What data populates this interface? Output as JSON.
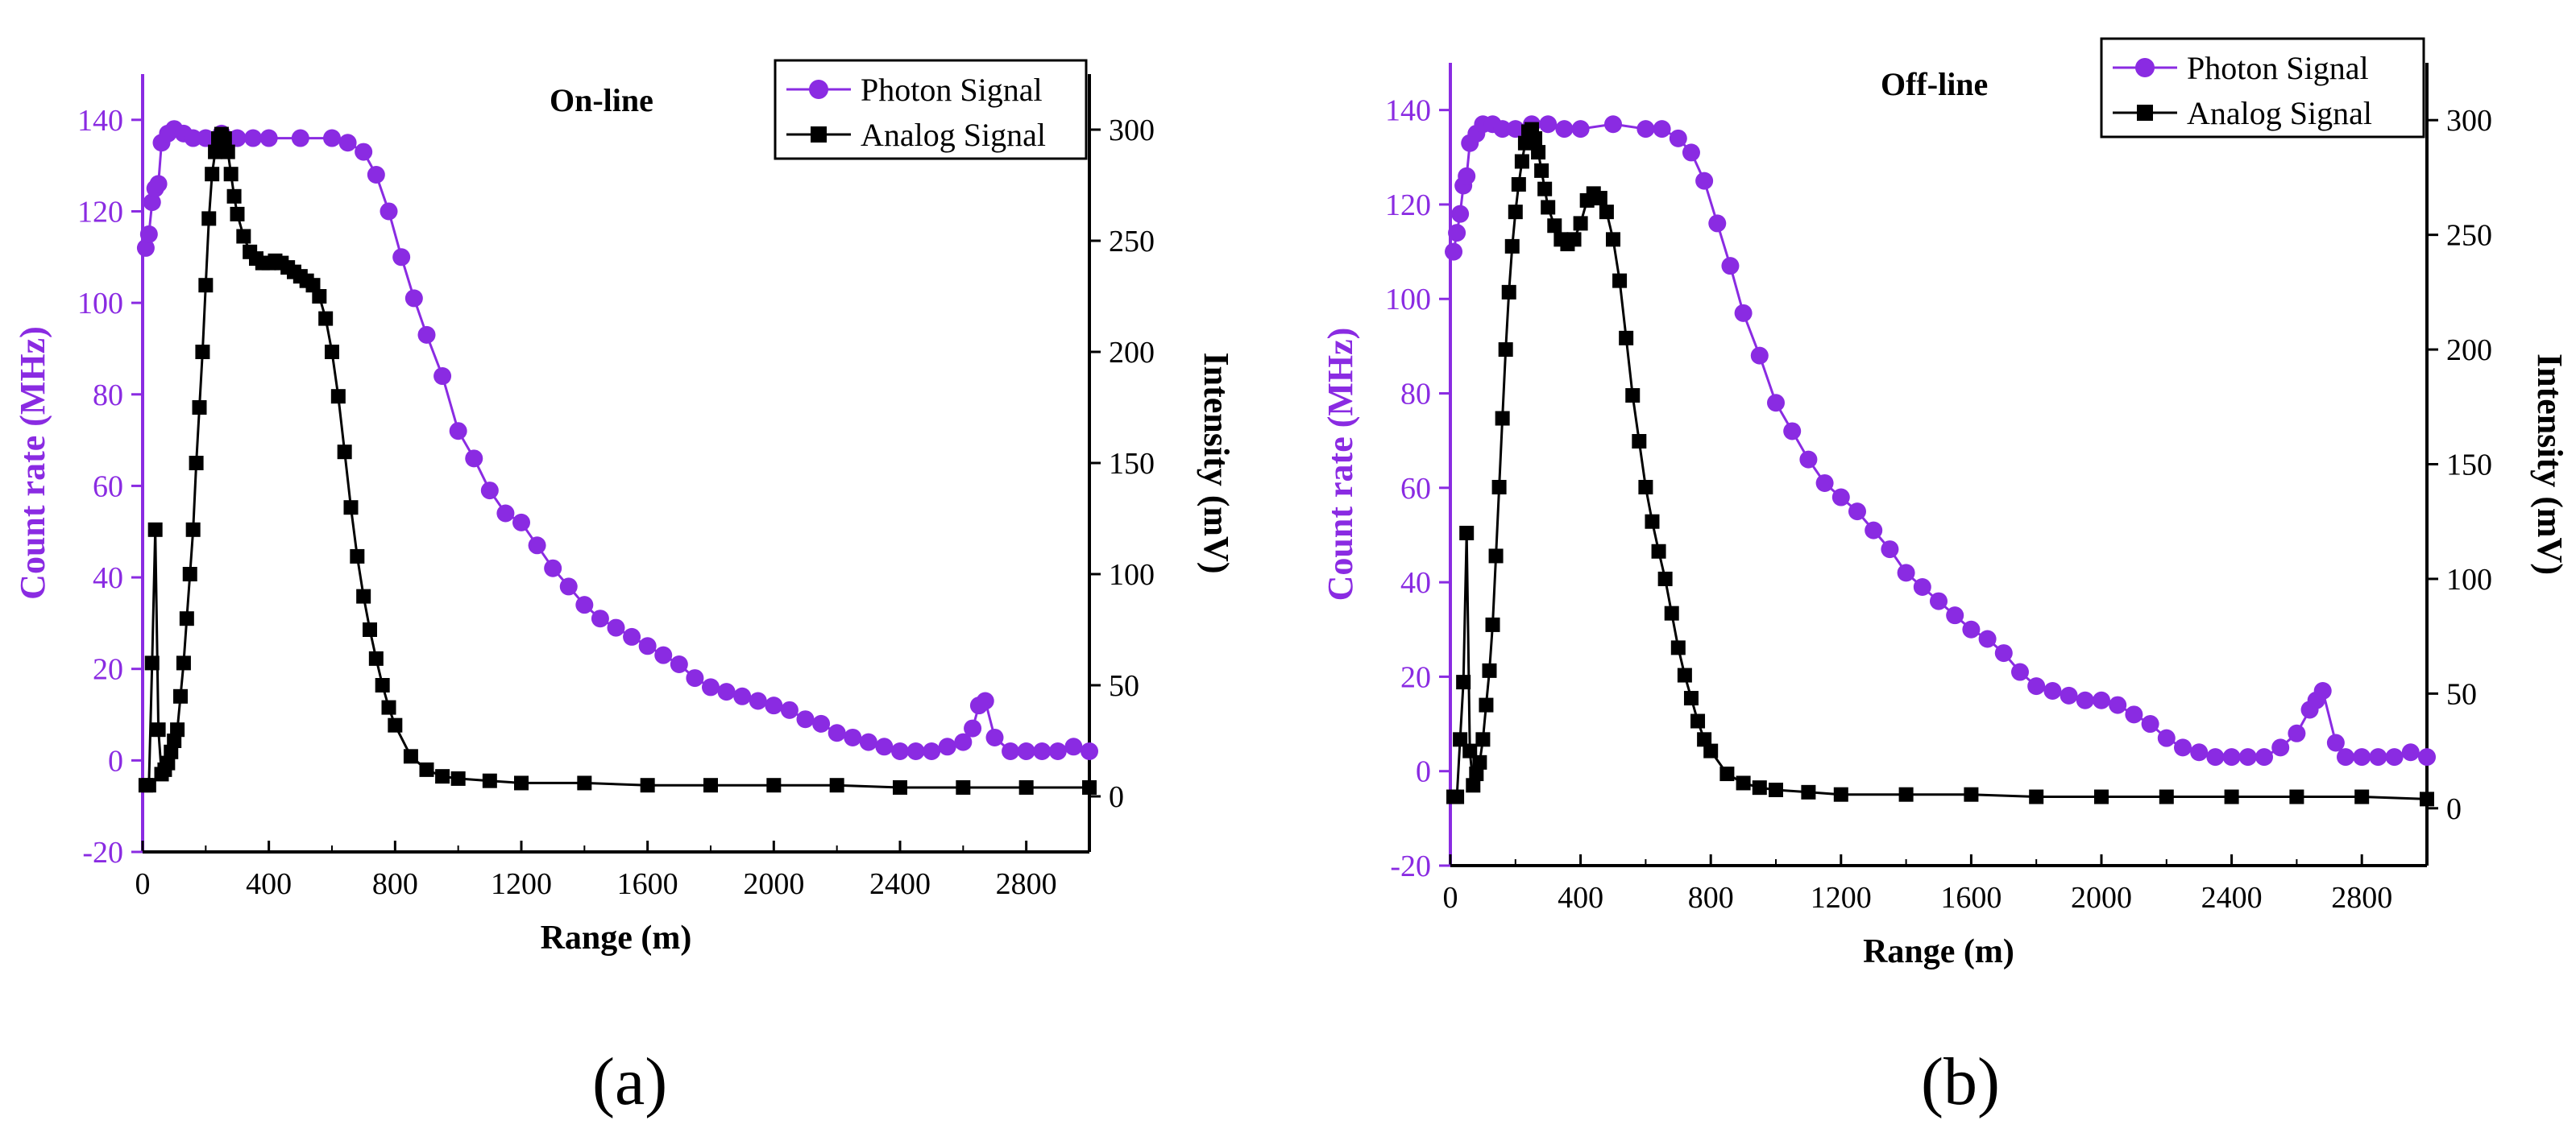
{
  "colors": {
    "photon": "#8A2BE2",
    "analog": "#000000",
    "axis_left": "#8A2BE2",
    "axis_right": "#000000"
  },
  "panels": [
    {
      "label": "(a)",
      "chart_data": {
        "type": "line",
        "title": "On-line",
        "xlabel": "Range (m)",
        "ylabel_left": "Count rate (MHz)",
        "ylabel_right": "Intensity (mV)",
        "xlim": [
          0,
          3000
        ],
        "ylim_left": [
          -20,
          150
        ],
        "ylim_right": [
          -25,
          325
        ],
        "xticks": [
          0,
          400,
          800,
          1200,
          1600,
          2000,
          2400,
          2800
        ],
        "yticks_left": [
          -20,
          0,
          20,
          40,
          60,
          80,
          100,
          120,
          140
        ],
        "yticks_right": [
          0,
          50,
          100,
          150,
          200,
          250,
          300
        ],
        "legend": [
          "Photon Signal",
          "Analog Signal"
        ],
        "legend_position": "top-right",
        "series": [
          {
            "name": "Photon Signal",
            "axis": "left",
            "marker": "circle",
            "x": [
              10,
              20,
              30,
              40,
              50,
              60,
              80,
              100,
              130,
              160,
              200,
              250,
              300,
              350,
              400,
              500,
              600,
              650,
              700,
              740,
              780,
              820,
              860,
              900,
              950,
              1000,
              1050,
              1100,
              1150,
              1200,
              1250,
              1300,
              1350,
              1400,
              1450,
              1500,
              1550,
              1600,
              1650,
              1700,
              1750,
              1800,
              1850,
              1900,
              1950,
              2000,
              2050,
              2100,
              2150,
              2200,
              2250,
              2300,
              2350,
              2400,
              2450,
              2500,
              2550,
              2600,
              2630,
              2650,
              2670,
              2700,
              2750,
              2800,
              2850,
              2900,
              2950,
              3000
            ],
            "values": [
              112,
              115,
              122,
              125,
              126,
              135,
              137,
              138,
              137,
              136,
              136,
              137,
              136,
              136,
              136,
              136,
              136,
              135,
              133,
              128,
              120,
              110,
              101,
              93,
              84,
              72,
              66,
              59,
              54,
              52,
              47,
              42,
              38,
              34,
              31,
              29,
              27,
              25,
              23,
              21,
              18,
              16,
              15,
              14,
              13,
              12,
              11,
              9,
              8,
              6,
              5,
              4,
              3,
              2,
              2,
              2,
              3,
              4,
              7,
              12,
              13,
              5,
              2,
              2,
              2,
              2,
              3,
              2
            ]
          },
          {
            "name": "Analog Signal",
            "axis": "right",
            "marker": "square",
            "x": [
              10,
              20,
              30,
              40,
              50,
              60,
              70,
              80,
              90,
              100,
              110,
              120,
              130,
              140,
              150,
              160,
              170,
              180,
              190,
              200,
              210,
              220,
              230,
              240,
              250,
              260,
              270,
              280,
              290,
              300,
              320,
              340,
              360,
              380,
              400,
              420,
              440,
              460,
              480,
              500,
              520,
              540,
              560,
              580,
              600,
              620,
              640,
              660,
              680,
              700,
              720,
              740,
              760,
              780,
              800,
              850,
              900,
              950,
              1000,
              1100,
              1200,
              1400,
              1600,
              1800,
              2000,
              2200,
              2400,
              2600,
              2800,
              3000
            ],
            "values": [
              5,
              5,
              60,
              120,
              30,
              10,
              12,
              15,
              20,
              25,
              30,
              45,
              60,
              80,
              100,
              120,
              150,
              175,
              200,
              230,
              260,
              280,
              290,
              296,
              298,
              296,
              290,
              280,
              270,
              262,
              252,
              245,
              242,
              240,
              240,
              241,
              240,
              238,
              236,
              234,
              232,
              230,
              225,
              215,
              200,
              180,
              155,
              130,
              108,
              90,
              75,
              62,
              50,
              40,
              32,
              18,
              12,
              9,
              8,
              7,
              6,
              6,
              5,
              5,
              5,
              5,
              4,
              4,
              4,
              4
            ]
          }
        ]
      }
    },
    {
      "label": "(b)",
      "chart_data": {
        "type": "line",
        "title": "Off-line",
        "xlabel": "Range (m)",
        "ylabel_left": "Count rate (MHz)",
        "ylabel_right": "Intensity (mV)",
        "xlim": [
          0,
          3000
        ],
        "ylim_left": [
          -20,
          150
        ],
        "ylim_right": [
          -25,
          325
        ],
        "xticks": [
          0,
          400,
          800,
          1200,
          1600,
          2000,
          2400,
          2800
        ],
        "yticks_left": [
          -20,
          0,
          20,
          40,
          60,
          80,
          100,
          120,
          140
        ],
        "yticks_right": [
          0,
          50,
          100,
          150,
          200,
          250,
          300
        ],
        "legend": [
          "Photon Signal",
          "Analog Signal"
        ],
        "legend_position": "top-right",
        "series": [
          {
            "name": "Photon Signal",
            "axis": "left",
            "marker": "circle",
            "x": [
              10,
              20,
              30,
              40,
              50,
              60,
              80,
              100,
              130,
              160,
              200,
              250,
              300,
              350,
              400,
              500,
              600,
              650,
              700,
              740,
              780,
              820,
              860,
              900,
              950,
              1000,
              1050,
              1100,
              1150,
              1200,
              1250,
              1300,
              1350,
              1400,
              1450,
              1500,
              1550,
              1600,
              1650,
              1700,
              1750,
              1800,
              1850,
              1900,
              1950,
              2000,
              2050,
              2100,
              2150,
              2200,
              2250,
              2300,
              2350,
              2400,
              2450,
              2500,
              2550,
              2600,
              2640,
              2660,
              2680,
              2720,
              2750,
              2800,
              2850,
              2900,
              2950,
              3000
            ],
            "values": [
              110,
              114,
              118,
              124,
              126,
              133,
              135,
              137,
              137,
              136,
              136,
              137,
              137,
              136,
              136,
              137,
              136,
              136,
              134,
              131,
              125,
              116,
              107,
              97,
              88,
              78,
              72,
              66,
              61,
              58,
              55,
              51,
              47,
              42,
              39,
              36,
              33,
              30,
              28,
              25,
              21,
              18,
              17,
              16,
              15,
              15,
              14,
              12,
              10,
              7,
              5,
              4,
              3,
              3,
              3,
              3,
              5,
              8,
              13,
              15,
              17,
              6,
              3,
              3,
              3,
              3,
              4,
              3
            ]
          },
          {
            "name": "Analog Signal",
            "axis": "right",
            "marker": "square",
            "x": [
              10,
              20,
              30,
              40,
              50,
              60,
              70,
              80,
              90,
              100,
              110,
              120,
              130,
              140,
              150,
              160,
              170,
              180,
              190,
              200,
              210,
              220,
              230,
              240,
              250,
              260,
              270,
              280,
              290,
              300,
              320,
              340,
              360,
              380,
              400,
              420,
              440,
              460,
              480,
              500,
              520,
              540,
              560,
              580,
              600,
              620,
              640,
              660,
              680,
              700,
              720,
              740,
              760,
              780,
              800,
              850,
              900,
              950,
              1000,
              1100,
              1200,
              1400,
              1600,
              1800,
              2000,
              2200,
              2400,
              2600,
              2800,
              3000
            ],
            "values": [
              5,
              5,
              30,
              55,
              120,
              25,
              10,
              15,
              20,
              30,
              45,
              60,
              80,
              110,
              140,
              170,
              200,
              225,
              245,
              260,
              272,
              282,
              290,
              295,
              296,
              292,
              286,
              278,
              270,
              262,
              254,
              248,
              246,
              248,
              255,
              265,
              268,
              266,
              260,
              248,
              230,
              205,
              180,
              160,
              140,
              125,
              112,
              100,
              85,
              70,
              58,
              48,
              38,
              30,
              25,
              15,
              11,
              9,
              8,
              7,
              6,
              6,
              6,
              5,
              5,
              5,
              5,
              5,
              5,
              4
            ]
          }
        ]
      }
    }
  ]
}
